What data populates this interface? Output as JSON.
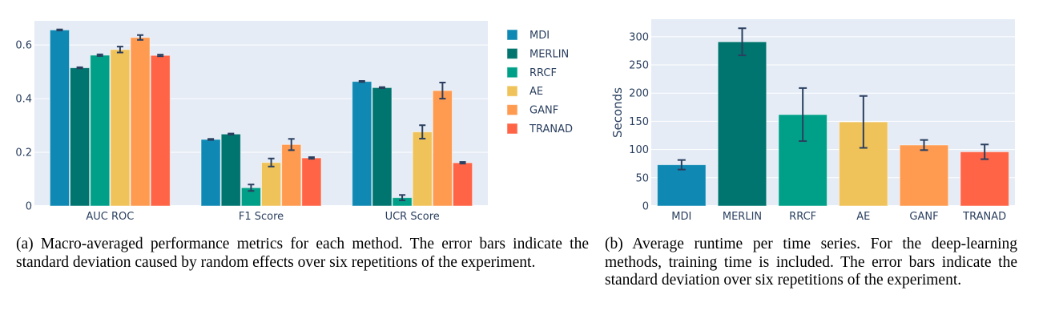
{
  "methods": [
    "MDI",
    "MERLIN",
    "RRCF",
    "AE",
    "GANF",
    "TRANAD"
  ],
  "colors": {
    "MDI": "#0F89B4",
    "MERLIN": "#00746E",
    "RRCF": "#00A088",
    "AE": "#F0C25A",
    "GANF": "#FF9B50",
    "TRANAD": "#FF6446",
    "plot_bg": "#E5ECF6",
    "grid": "#FFFFFF",
    "error_bar": "#2A3F5F",
    "text": "#2A3F5F"
  },
  "chart_data": [
    {
      "type": "bar",
      "id": "performance",
      "title": "",
      "xlabel": "",
      "ylabel": "",
      "categories": [
        "AUC ROC",
        "F1 Score",
        "UCR Score"
      ],
      "ylim": [
        0,
        0.69
      ],
      "yticks": [
        0,
        0.2,
        0.4,
        0.6
      ],
      "ytick_labels": [
        "0",
        "0.2",
        "0.4",
        "0.6"
      ],
      "grid": true,
      "legend": "right",
      "series": [
        {
          "name": "MDI",
          "values": [
            0.656,
            0.248,
            0.464
          ],
          "errors": [
            0.002,
            0.002,
            0.002
          ]
        },
        {
          "name": "MERLIN",
          "values": [
            0.515,
            0.268,
            0.441
          ],
          "errors": [
            0.002,
            0.002,
            0.002
          ]
        },
        {
          "name": "RRCF",
          "values": [
            0.562,
            0.068,
            0.031
          ],
          "errors": [
            0.003,
            0.012,
            0.01
          ]
        },
        {
          "name": "AE",
          "values": [
            0.583,
            0.162,
            0.276
          ],
          "errors": [
            0.011,
            0.015,
            0.025
          ]
        },
        {
          "name": "GANF",
          "values": [
            0.628,
            0.229,
            0.43
          ],
          "errors": [
            0.009,
            0.021,
            0.03
          ]
        },
        {
          "name": "TRANAD",
          "values": [
            0.561,
            0.179,
            0.161
          ],
          "errors": [
            0.003,
            0.003,
            0.003
          ]
        }
      ]
    },
    {
      "type": "bar",
      "id": "runtime",
      "title": "",
      "xlabel": "",
      "ylabel": "Seconds",
      "categories": [
        "MDI",
        "MERLIN",
        "RRCF",
        "AE",
        "GANF",
        "TRANAD"
      ],
      "ylim": [
        0,
        331
      ],
      "yticks": [
        0,
        50,
        100,
        150,
        200,
        250,
        300
      ],
      "ytick_labels": [
        "0",
        "50",
        "100",
        "150",
        "200",
        "250",
        "300"
      ],
      "grid": true,
      "legend": "none",
      "values": [
        73,
        291,
        162,
        149,
        108,
        96
      ],
      "errors": [
        8.5,
        24,
        47,
        46,
        9,
        13
      ]
    }
  ],
  "captions": {
    "a": "(a) Macro-averaged performance metrics for each method. The error bars indicate the standard deviation caused by random effects over six repetitions of the experiment.",
    "b": "(b) Average runtime per time series.  For the deep-learning methods, training time is included. The error bars indicate the standard deviation over six repetitions of the experiment."
  }
}
